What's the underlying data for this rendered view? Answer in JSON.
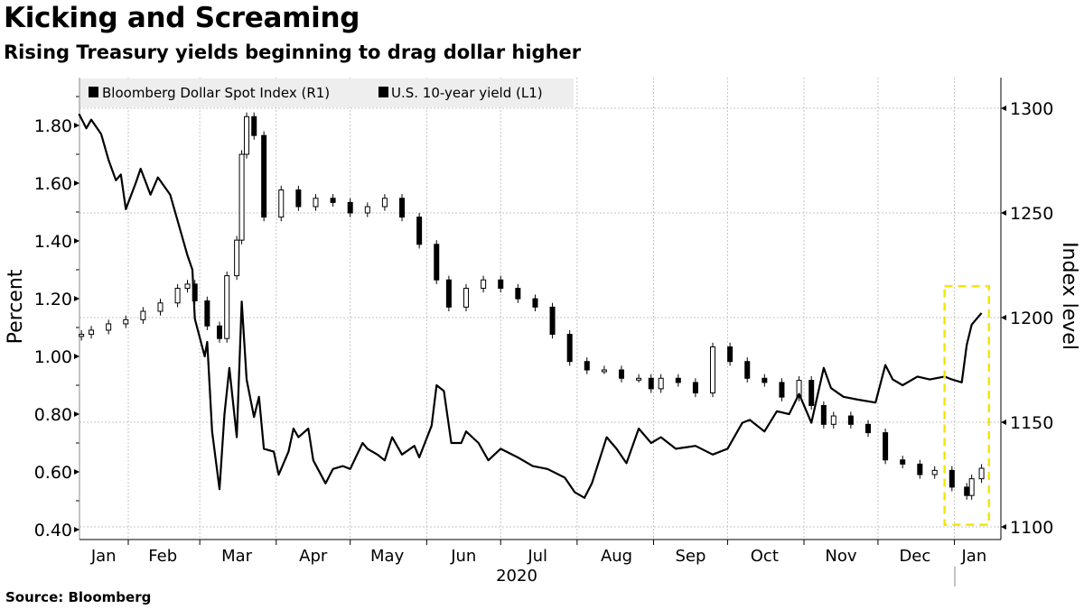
{
  "header": {
    "title": "Kicking and Screaming",
    "subtitle": "Rising Treasury yields beginning to drag dollar higher"
  },
  "footer": {
    "source": "Source: Bloomberg"
  },
  "chart_data": {
    "type": "line",
    "title": "Kicking and Screaming",
    "subtitle": "Rising Treasury yields beginning to drag dollar higher",
    "x_range": [
      "2020-01-12",
      "2021-01-19"
    ],
    "x_tick_labels": [
      "Jan",
      "Feb",
      "Mar",
      "Apr",
      "May",
      "Jun",
      "Jul",
      "Aug",
      "Sep",
      "Oct",
      "Nov",
      "Dec",
      "Jan"
    ],
    "x_year_label": "2020",
    "left_axis": {
      "label": "Percent",
      "range": [
        0.4,
        1.9
      ],
      "ticks": [
        "0.40",
        "0.60",
        "0.80",
        "1.00",
        "1.20",
        "1.40",
        "1.60",
        "1.80"
      ]
    },
    "right_axis": {
      "label": "Index level",
      "range": [
        1096,
        1307
      ],
      "ticks": [
        "1100",
        "1150",
        "1200",
        "1250",
        "1300"
      ]
    },
    "grid": true,
    "legend": {
      "placement": "top-left",
      "entries": [
        "Bloomberg Dollar Spot Index (R1)",
        "U.S. 10-year yield (L1)"
      ]
    },
    "colors": {
      "line": "#000000",
      "highlight": "#f5e600",
      "legend_bg": "#eeeeee",
      "grid": "#bbbbbb"
    },
    "series": [
      {
        "name": "U.S. 10-year yield (L1)",
        "axis": "left",
        "style": "line",
        "points": [
          [
            "2020-01-12",
            1.84
          ],
          [
            "2020-01-15",
            1.79
          ],
          [
            "2020-01-17",
            1.82
          ],
          [
            "2020-01-21",
            1.77
          ],
          [
            "2020-01-24",
            1.68
          ],
          [
            "2020-01-27",
            1.61
          ],
          [
            "2020-01-29",
            1.63
          ],
          [
            "2020-01-31",
            1.51
          ],
          [
            "2020-02-04",
            1.6
          ],
          [
            "2020-02-06",
            1.65
          ],
          [
            "2020-02-10",
            1.56
          ],
          [
            "2020-02-13",
            1.62
          ],
          [
            "2020-02-18",
            1.56
          ],
          [
            "2020-02-21",
            1.47
          ],
          [
            "2020-02-25",
            1.35
          ],
          [
            "2020-02-27",
            1.3
          ],
          [
            "2020-02-28",
            1.13
          ],
          [
            "2020-03-03",
            1.0
          ],
          [
            "2020-03-04",
            1.05
          ],
          [
            "2020-03-06",
            0.74
          ],
          [
            "2020-03-09",
            0.54
          ],
          [
            "2020-03-11",
            0.8
          ],
          [
            "2020-03-13",
            0.96
          ],
          [
            "2020-03-16",
            0.72
          ],
          [
            "2020-03-18",
            1.19
          ],
          [
            "2020-03-20",
            0.92
          ],
          [
            "2020-03-23",
            0.79
          ],
          [
            "2020-03-25",
            0.86
          ],
          [
            "2020-03-27",
            0.68
          ],
          [
            "2020-03-31",
            0.67
          ],
          [
            "2020-04-02",
            0.59
          ],
          [
            "2020-04-06",
            0.67
          ],
          [
            "2020-04-08",
            0.75
          ],
          [
            "2020-04-10",
            0.72
          ],
          [
            "2020-04-14",
            0.75
          ],
          [
            "2020-04-16",
            0.64
          ],
          [
            "2020-04-21",
            0.56
          ],
          [
            "2020-04-24",
            0.61
          ],
          [
            "2020-04-28",
            0.62
          ],
          [
            "2020-05-01",
            0.61
          ],
          [
            "2020-05-06",
            0.7
          ],
          [
            "2020-05-08",
            0.68
          ],
          [
            "2020-05-12",
            0.66
          ],
          [
            "2020-05-15",
            0.64
          ],
          [
            "2020-05-18",
            0.72
          ],
          [
            "2020-05-22",
            0.66
          ],
          [
            "2020-05-27",
            0.69
          ],
          [
            "2020-05-29",
            0.65
          ],
          [
            "2020-06-03",
            0.76
          ],
          [
            "2020-06-05",
            0.9
          ],
          [
            "2020-06-08",
            0.88
          ],
          [
            "2020-06-11",
            0.7
          ],
          [
            "2020-06-15",
            0.7
          ],
          [
            "2020-06-17",
            0.74
          ],
          [
            "2020-06-22",
            0.7
          ],
          [
            "2020-06-26",
            0.64
          ],
          [
            "2020-07-01",
            0.68
          ],
          [
            "2020-07-08",
            0.65
          ],
          [
            "2020-07-14",
            0.62
          ],
          [
            "2020-07-20",
            0.61
          ],
          [
            "2020-07-27",
            0.58
          ],
          [
            "2020-07-31",
            0.53
          ],
          [
            "2020-08-04",
            0.51
          ],
          [
            "2020-08-07",
            0.56
          ],
          [
            "2020-08-13",
            0.72
          ],
          [
            "2020-08-17",
            0.68
          ],
          [
            "2020-08-21",
            0.63
          ],
          [
            "2020-08-26",
            0.75
          ],
          [
            "2020-08-31",
            0.7
          ],
          [
            "2020-09-04",
            0.72
          ],
          [
            "2020-09-10",
            0.68
          ],
          [
            "2020-09-18",
            0.69
          ],
          [
            "2020-09-25",
            0.66
          ],
          [
            "2020-10-01",
            0.68
          ],
          [
            "2020-10-07",
            0.77
          ],
          [
            "2020-10-10",
            0.78
          ],
          [
            "2020-10-16",
            0.74
          ],
          [
            "2020-10-21",
            0.81
          ],
          [
            "2020-10-26",
            0.8
          ],
          [
            "2020-10-30",
            0.87
          ],
          [
            "2020-11-04",
            0.77
          ],
          [
            "2020-11-09",
            0.96
          ],
          [
            "2020-11-12",
            0.89
          ],
          [
            "2020-11-17",
            0.86
          ],
          [
            "2020-11-23",
            0.85
          ],
          [
            "2020-11-30",
            0.84
          ],
          [
            "2020-12-04",
            0.97
          ],
          [
            "2020-12-07",
            0.92
          ],
          [
            "2020-12-11",
            0.9
          ],
          [
            "2020-12-17",
            0.93
          ],
          [
            "2020-12-22",
            0.92
          ],
          [
            "2020-12-28",
            0.93
          ],
          [
            "2020-12-31",
            0.92
          ],
          [
            "2021-01-04",
            0.91
          ],
          [
            "2021-01-06",
            1.04
          ],
          [
            "2021-01-08",
            1.11
          ],
          [
            "2021-01-11",
            1.14
          ],
          [
            "2021-01-12",
            1.15
          ]
        ]
      },
      {
        "name": "Bloomberg Dollar Spot Index (R1)",
        "axis": "right",
        "style": "candlestick",
        "closes": [
          [
            "2020-01-13",
            1192
          ],
          [
            "2020-01-17",
            1194
          ],
          [
            "2020-01-24",
            1197
          ],
          [
            "2020-01-31",
            1199
          ],
          [
            "2020-02-07",
            1203
          ],
          [
            "2020-02-14",
            1207
          ],
          [
            "2020-02-21",
            1214
          ],
          [
            "2020-02-25",
            1216
          ],
          [
            "2020-02-28",
            1208
          ],
          [
            "2020-03-04",
            1196
          ],
          [
            "2020-03-09",
            1190
          ],
          [
            "2020-03-12",
            1220
          ],
          [
            "2020-03-16",
            1237
          ],
          [
            "2020-03-18",
            1278
          ],
          [
            "2020-03-20",
            1296
          ],
          [
            "2020-03-23",
            1287
          ],
          [
            "2020-03-27",
            1248
          ],
          [
            "2020-04-03",
            1261
          ],
          [
            "2020-04-10",
            1253
          ],
          [
            "2020-04-17",
            1257
          ],
          [
            "2020-04-24",
            1255
          ],
          [
            "2020-05-01",
            1250
          ],
          [
            "2020-05-08",
            1253
          ],
          [
            "2020-05-15",
            1257
          ],
          [
            "2020-05-22",
            1248
          ],
          [
            "2020-05-29",
            1235
          ],
          [
            "2020-06-05",
            1218
          ],
          [
            "2020-06-10",
            1205
          ],
          [
            "2020-06-17",
            1214
          ],
          [
            "2020-06-24",
            1218
          ],
          [
            "2020-07-01",
            1214
          ],
          [
            "2020-07-08",
            1209
          ],
          [
            "2020-07-15",
            1205
          ],
          [
            "2020-07-22",
            1192
          ],
          [
            "2020-07-29",
            1179
          ],
          [
            "2020-08-05",
            1175
          ],
          [
            "2020-08-12",
            1175
          ],
          [
            "2020-08-19",
            1171
          ],
          [
            "2020-08-26",
            1171
          ],
          [
            "2020-08-31",
            1166
          ],
          [
            "2020-09-04",
            1171
          ],
          [
            "2020-09-11",
            1169
          ],
          [
            "2020-09-18",
            1164
          ],
          [
            "2020-09-25",
            1186
          ],
          [
            "2020-10-02",
            1179
          ],
          [
            "2020-10-09",
            1171
          ],
          [
            "2020-10-16",
            1169
          ],
          [
            "2020-10-23",
            1162
          ],
          [
            "2020-10-30",
            1170
          ],
          [
            "2020-11-04",
            1158
          ],
          [
            "2020-11-09",
            1149
          ],
          [
            "2020-11-13",
            1153
          ],
          [
            "2020-11-20",
            1149
          ],
          [
            "2020-11-27",
            1145
          ],
          [
            "2020-12-04",
            1132
          ],
          [
            "2020-12-11",
            1130
          ],
          [
            "2020-12-18",
            1125
          ],
          [
            "2020-12-24",
            1127
          ],
          [
            "2020-12-31",
            1119
          ],
          [
            "2021-01-06",
            1115
          ],
          [
            "2021-01-08",
            1123
          ],
          [
            "2021-01-12",
            1128
          ]
        ]
      }
    ],
    "annotations": [
      {
        "type": "dashed-box",
        "color": "#f5e600",
        "x_range": [
          "2020-12-28",
          "2021-01-15"
        ],
        "right_axis_range": [
          1101,
          1215
        ]
      }
    ]
  }
}
